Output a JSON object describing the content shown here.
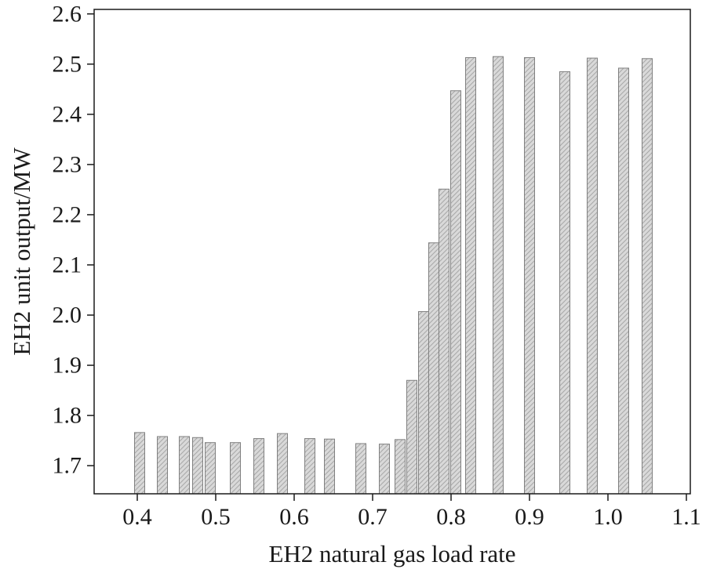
{
  "chart_data": {
    "type": "bar",
    "title": "",
    "xlabel": "EH2 natural gas load rate",
    "ylabel": "EH2 unit output/MW",
    "xlim": [
      0.345,
      1.105
    ],
    "ylim": [
      1.644,
      2.609
    ],
    "x_ticks": [
      0.4,
      0.5,
      0.6,
      0.7,
      0.8,
      0.9,
      1.0,
      1.1
    ],
    "x_tick_labels": [
      "0.4",
      "0.5",
      "0.6",
      "0.7",
      "0.8",
      "0.9",
      "1.0",
      "1.1"
    ],
    "y_ticks": [
      1.7,
      1.8,
      1.9,
      2.0,
      2.1,
      2.2,
      2.3,
      2.4,
      2.5,
      2.6
    ],
    "y_tick_labels": [
      "1.7",
      "1.8",
      "1.9",
      "2.0",
      "2.1",
      "2.2",
      "2.3",
      "2.4",
      "2.5",
      "2.6"
    ],
    "grid": false,
    "legend": null,
    "bar_width": 0.013,
    "colors": {
      "bar_fill": "#d9d9d9",
      "bar_hatch": "#a8a8a8",
      "bar_stroke": "#808080",
      "axis": "#1a1a1a",
      "background": "#ffffff"
    },
    "x": [
      0.403,
      0.432,
      0.46,
      0.477,
      0.493,
      0.525,
      0.555,
      0.585,
      0.62,
      0.645,
      0.685,
      0.715,
      0.735,
      0.75,
      0.765,
      0.778,
      0.791,
      0.806,
      0.825,
      0.86,
      0.9,
      0.945,
      0.98,
      1.02,
      1.05
    ],
    "values": [
      1.766,
      1.758,
      1.758,
      1.756,
      1.746,
      1.746,
      1.754,
      1.764,
      1.754,
      1.753,
      1.744,
      1.743,
      1.752,
      1.87,
      2.007,
      2.144,
      2.251,
      2.447,
      2.513,
      2.515,
      2.513,
      2.485,
      2.512,
      2.492,
      2.511
    ]
  }
}
